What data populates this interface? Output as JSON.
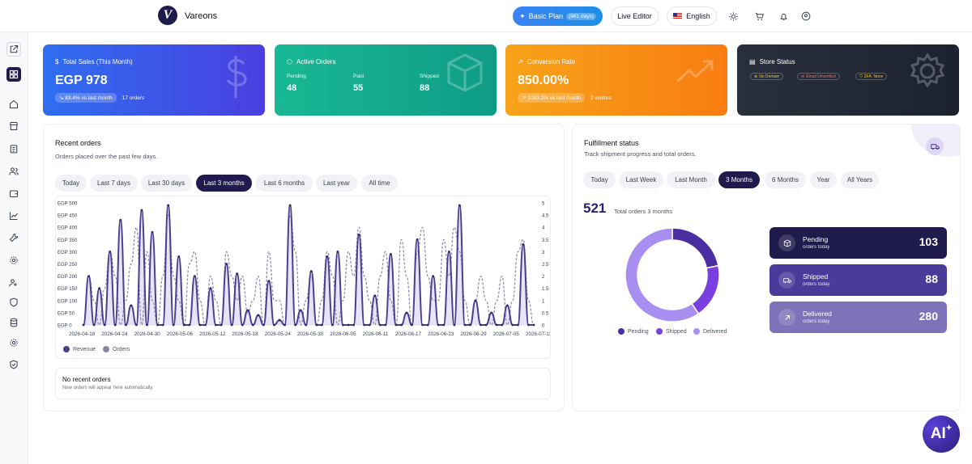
{
  "header": {
    "brand": "Vareons",
    "logo_letter": "V",
    "plan_label": "Basic Plan",
    "plan_days": "(961 days)",
    "live_editor": "Live Editor",
    "language": "English",
    "icons": [
      "sun-icon",
      "cart-icon",
      "bell-icon",
      "user-icon"
    ]
  },
  "sidebar": {
    "items": [
      "external-link-icon",
      "grid-icon",
      "home-icon",
      "store-icon",
      "clipboard-icon",
      "users-icon",
      "wallet-icon",
      "analytics-icon",
      "tools-icon",
      "settings-icon",
      "user-cog-icon",
      "shield-icon",
      "database-icon",
      "gear-icon",
      "shield-check-icon"
    ]
  },
  "cards": {
    "sales": {
      "title": "Total Sales (This Month)",
      "value": "EGP 978",
      "change": "↘ 83.4% vs last month",
      "extra": "17 orders",
      "color": "#3f55e6"
    },
    "active_orders": {
      "title": "Active Orders",
      "pending_label": "Pending",
      "pending": "48",
      "paid_label": "Paid",
      "paid": "55",
      "shipped_label": "Shipped",
      "shipped": "88",
      "color": "#16ae8f"
    },
    "conversion": {
      "title": "Conversion Rate",
      "value": "850.00%",
      "change": "↗ 1083.3% vs last month",
      "extra": "2 visitors",
      "color": "#f8901a"
    },
    "store": {
      "title": "Store Status",
      "badges": [
        "No Domain",
        "Email Unverified",
        "2FA: None"
      ],
      "color": "#262b38"
    }
  },
  "recent": {
    "title": "Recent orders",
    "subtitle": "Orders placed over the past few days.",
    "filters": [
      "Today",
      "Last 7 days",
      "Last 30 days",
      "Last 3 months",
      "Last 6 months",
      "Last year",
      "All time"
    ],
    "active_filter": "Last 3 months",
    "empty_title": "No recent orders",
    "empty_sub": "New orders will appear here automatically."
  },
  "chart_data": {
    "type": "line",
    "x_tick_labels": [
      "2026-04-18",
      "2026-04-24",
      "2026-04-30",
      "2026-05-06",
      "2026-05-12",
      "2026-05-18",
      "2026-05-24",
      "2026-05-30",
      "2026-06-05",
      "2026-06-11",
      "2026-06-17",
      "2026-06-23",
      "2026-06-29",
      "2026-07-05",
      "2026-07-11"
    ],
    "y_left_ticks": [
      "EGP 0",
      "EGP 50",
      "EGP 100",
      "EGP 150",
      "EGP 200",
      "EGP 250",
      "EGP 300",
      "EGP 350",
      "EGP 400",
      "EGP 450",
      "EGP 500"
    ],
    "y_right_ticks": [
      "0",
      "0.5",
      "1",
      "1.5",
      "2",
      "2.5",
      "3",
      "3.5",
      "4",
      "4.5",
      "5"
    ],
    "ylim_left": [
      0,
      500
    ],
    "ylim_right": [
      0,
      5
    ],
    "series": [
      {
        "name": "Revenue",
        "axis": "left",
        "color": "#4c3f8f",
        "values": [
          0,
          200,
          0,
          150,
          0,
          300,
          0,
          430,
          0,
          80,
          0,
          470,
          0,
          380,
          0,
          0,
          490,
          0,
          280,
          0,
          0,
          200,
          0,
          0,
          150,
          0,
          0,
          250,
          0,
          210,
          0,
          60,
          0,
          40,
          0,
          180,
          0,
          20,
          0,
          490,
          0,
          60,
          0,
          220,
          0,
          0,
          280,
          0,
          300,
          0,
          0,
          0,
          370,
          0,
          0,
          120,
          0,
          0,
          290,
          0,
          0,
          50,
          0,
          350,
          0,
          0,
          200,
          0,
          0,
          300,
          0,
          490,
          0,
          0,
          100,
          0,
          0,
          50,
          0,
          0,
          80,
          0,
          0,
          330,
          0,
          0
        ]
      },
      {
        "name": "Orders",
        "axis": "right",
        "color": "#8a86a8",
        "values": [
          0,
          2,
          1,
          0,
          1.5,
          3,
          2,
          0,
          1,
          2.5,
          4,
          0,
          3,
          1,
          0,
          2,
          4.5,
          2,
          1,
          0,
          2.5,
          3,
          1,
          0,
          2,
          1,
          0,
          3,
          2,
          1,
          2,
          0.5,
          1,
          2,
          0,
          3,
          1,
          1,
          0,
          4.5,
          3,
          0,
          1,
          2,
          0,
          1,
          3,
          2,
          0,
          1,
          3,
          2,
          4,
          2,
          1,
          0,
          2,
          3,
          1,
          0,
          3.5,
          2,
          0,
          3,
          4,
          2,
          1,
          1,
          3.5,
          2,
          4,
          3,
          1,
          0,
          1,
          2,
          1,
          0,
          1,
          2,
          0,
          1,
          3,
          3.5,
          1,
          0
        ]
      }
    ],
    "legend": [
      "Revenue",
      "Orders"
    ]
  },
  "fulfillment": {
    "title": "Fulfillment status",
    "subtitle": "Track shipment progress and total orders.",
    "filters": [
      "Today",
      "Last Week",
      "Last Month",
      "3 Months",
      "6 Months",
      "Year",
      "All Years"
    ],
    "active_filter": "3 Months",
    "total": "521",
    "total_label": "Total orders 3 months",
    "donut": [
      {
        "name": "Pending",
        "value": 103,
        "color": "#4c2ea3"
      },
      {
        "name": "Shipped",
        "value": 88,
        "color": "#7a3fe0"
      },
      {
        "name": "Delivered",
        "value": 280,
        "color": "#a88ef0"
      }
    ],
    "stats": [
      {
        "label": "Pending",
        "caption": "orders today",
        "value": "103",
        "icon": "box-icon",
        "color": "#1f1b4d"
      },
      {
        "label": "Shipped",
        "caption": "orders today",
        "value": "88",
        "icon": "truck-icon",
        "color": "#4a3a9a"
      },
      {
        "label": "Delivered",
        "caption": "orders today",
        "value": "280",
        "icon": "arrow-up-right-icon",
        "color": "#7e73b8"
      }
    ]
  },
  "ai_button": "AI"
}
